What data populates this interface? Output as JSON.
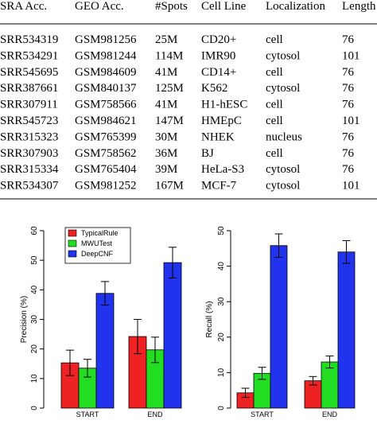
{
  "table": {
    "headers": [
      "SRA Acc.",
      "GEO Acc.",
      "#Spots",
      "Cell Line",
      "Localization",
      "Length"
    ],
    "rows": [
      [
        "SRR534319",
        "GSM981256",
        "25M",
        "CD20+",
        "cell",
        "76"
      ],
      [
        "SRR534291",
        "GSM981244",
        "114M",
        "IMR90",
        "cytosol",
        "101"
      ],
      [
        "SRR545695",
        "GSM984609",
        "41M",
        "CD14+",
        "cell",
        "76"
      ],
      [
        "SRR387661",
        "GSM840137",
        "125M",
        "K562",
        "cytosol",
        "76"
      ],
      [
        "SRR307911",
        "GSM758566",
        "41M",
        "H1-hESC",
        "cell",
        "76"
      ],
      [
        "SRR545723",
        "GSM984621",
        "147M",
        "HMEpC",
        "cell",
        "101"
      ],
      [
        "SRR315323",
        "GSM765399",
        "30M",
        "NHEK",
        "nucleus",
        "76"
      ],
      [
        "SRR307903",
        "GSM758562",
        "36M",
        "BJ",
        "cell",
        "76"
      ],
      [
        "SRR315334",
        "GSM765404",
        "39M",
        "HeLa-S3",
        "cytosol",
        "76"
      ],
      [
        "SRR534307",
        "GSM981252",
        "167M",
        "MCF-7",
        "cytosol",
        "101"
      ]
    ]
  },
  "chart_data": [
    {
      "type": "bar",
      "title": "",
      "ylabel": "Precision (%)",
      "xlabel": "",
      "ylim": [
        0,
        60
      ],
      "yticks": [
        0,
        10,
        20,
        30,
        40,
        50,
        60
      ],
      "categories": [
        "START",
        "END"
      ],
      "legend": "top-left",
      "series": [
        {
          "name": "TypicalRule",
          "color": "#ee2222",
          "values": [
            15.3,
            24.2
          ],
          "errors": [
            4.3,
            5.8
          ]
        },
        {
          "name": "MWUTest",
          "color": "#22dd22",
          "values": [
            13.5,
            19.7
          ],
          "errors": [
            3.0,
            4.3
          ]
        },
        {
          "name": "DeepCNF",
          "color": "#2233ee",
          "values": [
            38.8,
            49.2
          ],
          "errors": [
            4.0,
            5.2
          ]
        }
      ]
    },
    {
      "type": "bar",
      "title": "",
      "ylabel": "Recall (%)",
      "xlabel": "",
      "ylim": [
        0,
        50
      ],
      "yticks": [
        0,
        10,
        20,
        30,
        40,
        50
      ],
      "categories": [
        "START",
        "END"
      ],
      "legend": "none",
      "series": [
        {
          "name": "TypicalRule",
          "color": "#ee2222",
          "values": [
            4.3,
            7.7
          ],
          "errors": [
            1.3,
            1.2
          ]
        },
        {
          "name": "MWUTest",
          "color": "#22dd22",
          "values": [
            9.8,
            13.0
          ],
          "errors": [
            1.7,
            1.7
          ]
        },
        {
          "name": "DeepCNF",
          "color": "#2233ee",
          "values": [
            45.8,
            44.0
          ],
          "errors": [
            3.3,
            3.2
          ]
        }
      ]
    }
  ]
}
